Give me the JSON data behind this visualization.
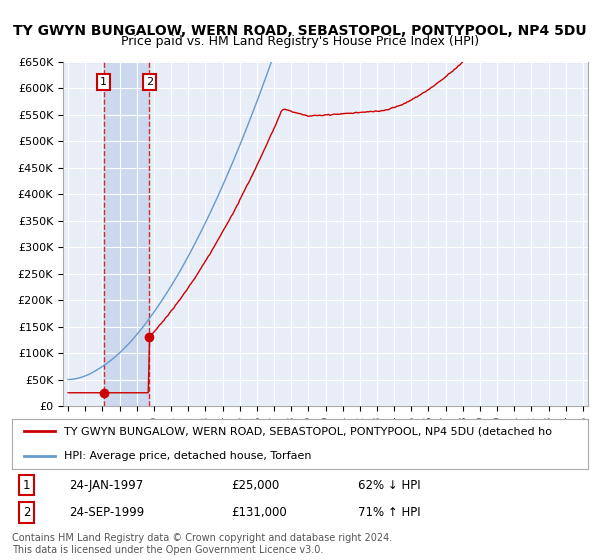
{
  "title": "TY GWYN BUNGALOW, WERN ROAD, SEBASTOPOL, PONTYPOOL, NP4 5DU",
  "subtitle": "Price paid vs. HM Land Registry's House Price Index (HPI)",
  "ylim": [
    0,
    650000
  ],
  "yticks": [
    0,
    50000,
    100000,
    150000,
    200000,
    250000,
    300000,
    350000,
    400000,
    450000,
    500000,
    550000,
    600000,
    650000
  ],
  "ytick_labels": [
    "£0",
    "£50K",
    "£100K",
    "£150K",
    "£200K",
    "£250K",
    "£300K",
    "£350K",
    "£400K",
    "£450K",
    "£500K",
    "£550K",
    "£600K",
    "£650K"
  ],
  "background_color": "#ffffff",
  "plot_bg_color": "#e8eef8",
  "grid_color": "#ffffff",
  "red_line_color": "#cc0000",
  "blue_line_color": "#6699cc",
  "vline_color": "#cc0000",
  "band_color": "#ccd8ee",
  "sale1_year": 1997.07,
  "sale1_price": 25000,
  "sale1_label": "1",
  "sale1_date": "24-JAN-1997",
  "sale2_year": 1999.73,
  "sale2_price": 131000,
  "sale2_label": "2",
  "sale2_date": "24-SEP-1999",
  "legend_red_label": "TY GWYN BUNGALOW, WERN ROAD, SEBASTOPOL, PONTYPOOL, NP4 5DU (detached ho",
  "legend_blue_label": "HPI: Average price, detached house, Torfaen",
  "footer": "Contains HM Land Registry data © Crown copyright and database right 2024.\nThis data is licensed under the Open Government Licence v3.0.",
  "title_fontsize": 10,
  "subtitle_fontsize": 9,
  "tick_fontsize": 8,
  "legend_fontsize": 8,
  "footer_fontsize": 7,
  "xmin": 1994.7,
  "xmax": 2025.3
}
